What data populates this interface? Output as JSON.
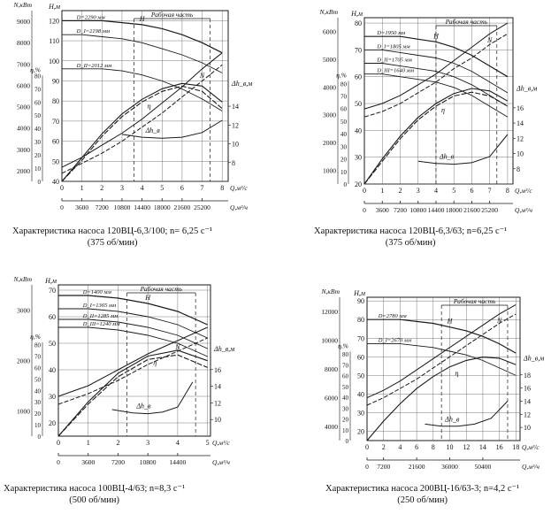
{
  "colors": {
    "ink": "#1a1a1a",
    "grid": "#555555",
    "paper": "#ffffff"
  },
  "chart_data": [
    {
      "type": "line",
      "caption": "Характеристика насоса 120ВЦ-6,3/100; n= 6,25 с⁻¹",
      "caption_sub": "(375 об/мин)",
      "units": {
        "h": "H,м",
        "n": "N,кВт",
        "eta": "η,%",
        "dh": "Δh_в,м",
        "q": "Q,м³/с",
        "qh": "Q,м³/ч"
      },
      "work_zone_label": "Рабочая часть",
      "dh_label": "Δh_в",
      "curve_labels": {
        "h": "H",
        "n": "N",
        "eta": "η"
      },
      "q_ticks": [
        "0",
        "1",
        "2",
        "3",
        "4",
        "5",
        "6",
        "7",
        "8"
      ],
      "qh_ticks": [
        "0",
        "3600",
        "7200",
        "10800",
        "14400",
        "18000",
        "21600",
        "25200"
      ],
      "h_ticks": [
        "40",
        "50",
        "60",
        "70",
        "80",
        "90",
        "100",
        "110",
        "120"
      ],
      "n_ticks": [
        "2000",
        "3000",
        "4000",
        "5000",
        "6000",
        "7000",
        "8000",
        "9000"
      ],
      "eta_ticks": [
        "0",
        "10",
        "20",
        "30",
        "40",
        "50",
        "60",
        "70",
        "80"
      ],
      "dh_ticks": [
        "8",
        "10",
        "12",
        "14"
      ],
      "h_range": [
        40,
        125
      ],
      "dh_range": [
        6,
        16
      ],
      "eta_range": [
        0,
        80
      ],
      "q_max": 8.3,
      "work_zone": [
        3.6,
        7.4
      ],
      "h_curves": [
        {
          "label": "D=2290 мм",
          "x": [
            0,
            1,
            2,
            3,
            4,
            5,
            6,
            7,
            8
          ],
          "y": [
            120,
            120,
            120,
            119,
            118,
            116,
            113,
            109,
            104
          ]
        },
        {
          "label": "D_I=2198 мм",
          "x": [
            0,
            1,
            2,
            3,
            4,
            5,
            6,
            7,
            8
          ],
          "y": [
            113,
            113,
            112,
            111,
            109,
            106,
            103,
            99,
            94
          ]
        },
        {
          "label": "D_II=2012 мм",
          "x": [
            0,
            1,
            2,
            3,
            4,
            5,
            6,
            7,
            8
          ],
          "y": [
            96,
            96,
            96,
            95,
            93,
            90,
            86,
            81,
            75
          ]
        }
      ],
      "n_curves": [
        {
          "x": [
            0,
            1,
            2,
            3,
            4,
            5,
            6,
            7,
            8
          ],
          "y": [
            47,
            52,
            58,
            64,
            71,
            79,
            87,
            96,
            104
          ]
        },
        {
          "x": [
            0,
            1,
            2,
            3,
            4,
            5,
            6,
            7,
            8
          ],
          "y": [
            44,
            49,
            54,
            60,
            67,
            74,
            82,
            90,
            98
          ]
        }
      ],
      "eta_curves": [
        {
          "x": [
            0,
            1,
            2,
            3,
            4,
            5,
            6,
            7,
            8
          ],
          "y": [
            0,
            18,
            36,
            51,
            62,
            70,
            74,
            72,
            60
          ]
        },
        {
          "x": [
            0,
            1,
            2,
            3,
            4,
            5,
            6,
            7,
            8
          ],
          "y": [
            0,
            16,
            34,
            49,
            60,
            68,
            72,
            68,
            55
          ]
        }
      ],
      "dh_curve": {
        "x": [
          3,
          4,
          5,
          6,
          7,
          8
        ],
        "y": [
          11.0,
          10.7,
          10.6,
          10.7,
          11.2,
          12.5
        ]
      }
    },
    {
      "type": "line",
      "caption": "Характеристика насоса 120ВЦ-6,3/63; n=6,25 с⁻¹",
      "caption_sub": "(375 об/мин)",
      "units": {
        "h": "H,м",
        "n": "N,кВт",
        "eta": "η,%",
        "dh": "Δh_в,м",
        "q": "Q,м³/с",
        "qh": "Q,м³/ч"
      },
      "work_zone_label": "Рабочая часть",
      "dh_label": "Δh_в",
      "curve_labels": {
        "h": "H",
        "n": "N",
        "eta": "η"
      },
      "q_ticks": [
        "0",
        "1",
        "2",
        "3",
        "4",
        "5",
        "6",
        "7",
        "8"
      ],
      "qh_ticks": [
        "0",
        "3600",
        "7200",
        "10800",
        "14400",
        "18000",
        "21600",
        "25200"
      ],
      "h_ticks": [
        "20",
        "30",
        "40",
        "50",
        "60",
        "70",
        "80"
      ],
      "n_ticks": [
        "1000",
        "2000",
        "3000",
        "4000",
        "5000",
        "6000"
      ],
      "eta_ticks": [
        "0",
        "10",
        "20",
        "30",
        "40",
        "50",
        "60",
        "70",
        "80"
      ],
      "dh_ticks": [
        "8",
        "10",
        "12",
        "14",
        "16"
      ],
      "h_range": [
        20,
        82
      ],
      "dh_range": [
        6,
        18
      ],
      "eta_range": [
        0,
        82
      ],
      "q_max": 8.3,
      "work_zone": [
        4.0,
        7.4
      ],
      "h_curves": [
        {
          "label": "D=1950 мм",
          "x": [
            0,
            1,
            2,
            3,
            4,
            5,
            6,
            7,
            8
          ],
          "y": [
            75,
            75,
            75,
            74,
            73,
            71,
            68,
            64,
            60
          ]
        },
        {
          "label": "D_I=1805 мм",
          "x": [
            0,
            1,
            2,
            3,
            4,
            5,
            6,
            7,
            8
          ],
          "y": [
            70,
            70,
            69,
            68,
            67,
            65,
            62,
            58,
            54
          ]
        },
        {
          "label": "D_II=1705 мм",
          "x": [
            0,
            1,
            2,
            3,
            4,
            5,
            6,
            7,
            8
          ],
          "y": [
            65,
            65,
            64,
            63,
            62,
            60,
            57,
            53,
            49
          ]
        },
        {
          "label": "D_III=1640 мм",
          "x": [
            0,
            1,
            2,
            3,
            4,
            5,
            6,
            7,
            8
          ],
          "y": [
            61,
            61,
            60,
            59,
            58,
            56,
            53,
            49,
            45
          ]
        }
      ],
      "n_curves": [
        {
          "x": [
            0,
            1,
            2,
            3,
            4,
            5,
            6,
            7,
            8
          ],
          "y": [
            48,
            50,
            53,
            57,
            61,
            66,
            71,
            76,
            80
          ]
        },
        {
          "x": [
            0,
            1,
            2,
            3,
            4,
            5,
            6,
            7,
            8
          ],
          "y": [
            45,
            47,
            50,
            54,
            58,
            63,
            67,
            72,
            76
          ]
        }
      ],
      "eta_curves": [
        {
          "x": [
            0,
            1,
            2,
            3,
            4,
            5,
            6,
            7,
            8
          ],
          "y": [
            0,
            20,
            38,
            53,
            64,
            72,
            76,
            74,
            66
          ]
        },
        {
          "x": [
            0,
            1,
            2,
            3,
            4,
            5,
            6,
            7,
            8
          ],
          "y": [
            0,
            18,
            36,
            51,
            62,
            70,
            73,
            70,
            62
          ]
        }
      ],
      "dh_curve": {
        "x": [
          3,
          4,
          5,
          6,
          7,
          8
        ],
        "y": [
          9.0,
          8.7,
          8.6,
          8.8,
          9.6,
          12.5
        ]
      }
    },
    {
      "type": "line",
      "caption": "Характеристика насоса 100ВЦ-4/63; n=8,3 с⁻¹",
      "caption_sub": "(500 об/мин)",
      "units": {
        "h": "H,м",
        "n": "N,кВт",
        "eta": "η,%",
        "dh": "Δh_в,м",
        "q": "Q,м³/с",
        "qh": "Q,м³/ч"
      },
      "work_zone_label": "Рабочая часть",
      "dh_label": "Δh_в",
      "curve_labels": {
        "h": "H",
        "n": "N",
        "eta": "η"
      },
      "q_ticks": [
        "0",
        "1",
        "2",
        "3",
        "4",
        "5"
      ],
      "qh_ticks": [
        "0",
        "3600",
        "7200",
        "10800",
        "14400"
      ],
      "h_ticks": [
        "20",
        "30",
        "40",
        "50",
        "60",
        "70"
      ],
      "n_ticks": [
        "1000",
        "2000",
        "3000"
      ],
      "eta_ticks": [
        "0",
        "10",
        "20",
        "30",
        "40",
        "50",
        "60",
        "70",
        "80"
      ],
      "dh_ticks": [
        "10",
        "12",
        "14",
        "16"
      ],
      "h_range": [
        15,
        72
      ],
      "dh_range": [
        8,
        18
      ],
      "eta_range": [
        0,
        82
      ],
      "q_max": 5.1,
      "work_zone": [
        2.3,
        4.6
      ],
      "h_curves": [
        {
          "label": "D=1400 мм",
          "x": [
            0,
            1,
            2,
            3,
            4,
            5
          ],
          "y": [
            68,
            68,
            67,
            65,
            62,
            57
          ]
        },
        {
          "label": "D_I=1365 мм",
          "x": [
            0,
            1,
            2,
            3,
            4,
            5
          ],
          "y": [
            63,
            63,
            62,
            60,
            57,
            52
          ]
        },
        {
          "label": "D_II=1285 мм",
          "x": [
            0,
            1,
            2,
            3,
            4,
            5
          ],
          "y": [
            59,
            59,
            58,
            56,
            53,
            48
          ]
        },
        {
          "label": "D_III=1240 мм",
          "x": [
            0,
            1,
            2,
            3,
            4,
            5
          ],
          "y": [
            56,
            56,
            55,
            53,
            50,
            45
          ]
        }
      ],
      "n_curves": [
        {
          "x": [
            0,
            1,
            2,
            3,
            4,
            5
          ],
          "y": [
            30,
            34,
            40,
            46,
            51,
            56
          ]
        },
        {
          "x": [
            0,
            1,
            2,
            3,
            4,
            5
          ],
          "y": [
            27,
            31,
            36,
            42,
            47,
            52
          ]
        }
      ],
      "eta_curves": [
        {
          "x": [
            0,
            1,
            2,
            3,
            4,
            5
          ],
          "y": [
            0,
            30,
            55,
            70,
            75,
            66
          ]
        },
        {
          "x": [
            0,
            1,
            2,
            3,
            4,
            5
          ],
          "y": [
            0,
            28,
            52,
            67,
            71,
            60
          ]
        }
      ],
      "dh_curve": {
        "x": [
          1.8,
          2.5,
          3,
          3.5,
          4,
          4.5
        ],
        "y": [
          11.2,
          10.8,
          10.7,
          10.9,
          11.5,
          14.5
        ]
      }
    },
    {
      "type": "line",
      "caption": "Характеристика насоса 200ВЦ-16/63-3; n=4,2 с⁻¹",
      "caption_sub": "(250 об/мин)",
      "units": {
        "h": "H,м",
        "n": "N,кВт",
        "eta": "η,%",
        "dh": "Δh_в,м",
        "q": "Q,м³/с",
        "qh": "Q,м³/ч"
      },
      "work_zone_label": "Рабочая часть",
      "dh_label": "Δh_в",
      "curve_labels": {
        "h": "H",
        "n": "N",
        "eta": "η"
      },
      "q_ticks": [
        "0",
        "2",
        "4",
        "6",
        "8",
        "10",
        "12",
        "14",
        "16",
        "18"
      ],
      "qh_ticks": [
        "0",
        "7200",
        "21600",
        "36000",
        "50400"
      ],
      "h_ticks": [
        "20",
        "30",
        "40",
        "50",
        "60",
        "70",
        "80",
        "90"
      ],
      "n_ticks": [
        "4000",
        "6000",
        "8000",
        "10000",
        "12000"
      ],
      "eta_ticks": [
        "0",
        "10",
        "20",
        "30",
        "40",
        "50",
        "60",
        "70",
        "80"
      ],
      "dh_ticks": [
        "10",
        "12",
        "14",
        "16",
        "18"
      ],
      "h_range": [
        15,
        92
      ],
      "dh_range": [
        8,
        20
      ],
      "eta_range": [
        0,
        82
      ],
      "q_max": 18.5,
      "work_zone": [
        9,
        17
      ],
      "h_curves": [
        {
          "label": "D=2780 мм",
          "x": [
            0,
            2,
            4,
            6,
            8,
            10,
            12,
            14,
            16,
            18
          ],
          "y": [
            80,
            80,
            80,
            79,
            78,
            76,
            74,
            71,
            67,
            62
          ]
        },
        {
          "label": "D_I=2670 мм",
          "x": [
            0,
            2,
            4,
            6,
            8,
            10,
            12,
            14,
            16,
            18
          ],
          "y": [
            67,
            67,
            67,
            66,
            65,
            63,
            61,
            58,
            54,
            50
          ]
        }
      ],
      "n_curves": [
        {
          "x": [
            0,
            2,
            4,
            6,
            8,
            10,
            12,
            14,
            16,
            18
          ],
          "y": [
            38,
            42,
            47,
            53,
            59,
            65,
            71,
            77,
            83,
            88
          ]
        },
        {
          "x": [
            0,
            2,
            4,
            6,
            8,
            10,
            12,
            14,
            16,
            18
          ],
          "y": [
            34,
            38,
            43,
            48,
            54,
            60,
            66,
            72,
            78,
            83
          ]
        }
      ],
      "eta_curves": [
        {
          "x": [
            0,
            2,
            4,
            6,
            8,
            10,
            12,
            14,
            16,
            18
          ],
          "y": [
            0,
            18,
            34,
            48,
            59,
            68,
            74,
            77,
            76,
            70
          ]
        }
      ],
      "dh_curve": {
        "x": [
          7,
          9,
          11,
          13,
          15,
          17
        ],
        "y": [
          10.5,
          10.2,
          10.2,
          10.5,
          11.4,
          14.0
        ]
      }
    }
  ]
}
